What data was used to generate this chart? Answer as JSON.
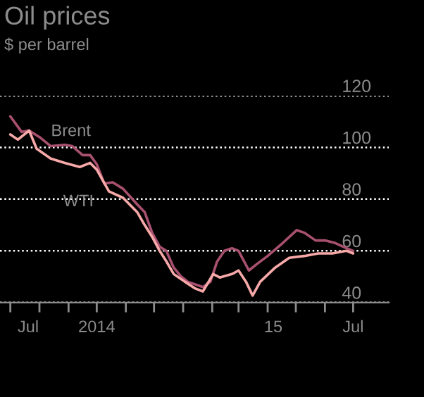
{
  "chart_data": {
    "type": "line",
    "title": "Oil prices",
    "subtitle": "$ per barrel",
    "series": [
      {
        "name": "Brent",
        "color": "#a8506f",
        "x": [
          "2014-07-01",
          "2014-07-13",
          "2014-07-21",
          "2014-08-01",
          "2014-08-13",
          "2014-08-28",
          "2014-09-05",
          "2014-09-16",
          "2014-09-24",
          "2014-10-01",
          "2014-10-09",
          "2014-10-18",
          "2014-10-29",
          "2014-11-13",
          "2014-11-21",
          "2014-11-29",
          "2014-12-07",
          "2014-12-14",
          "2014-12-22",
          "2014-12-30",
          "2015-01-06",
          "2015-01-22",
          "2015-01-30",
          "2015-02-06",
          "2015-02-14",
          "2015-02-22",
          "2015-03-01",
          "2015-03-12",
          "2015-03-21",
          "2015-04-01",
          "2015-04-17",
          "2015-05-02",
          "2015-05-10",
          "2015-05-22",
          "2015-06-01",
          "2015-06-12",
          "2015-06-24",
          "2015-07-01"
        ],
        "values": [
          112,
          106,
          106.5,
          104,
          100.5,
          101,
          100.5,
          97,
          97,
          93.5,
          86,
          86.5,
          84,
          78,
          75,
          67,
          61.6,
          60,
          53.5,
          50,
          48,
          46,
          48,
          55.7,
          60,
          61,
          60,
          52.4,
          55,
          58,
          63,
          68,
          67,
          64,
          64,
          63,
          61,
          60
        ]
      },
      {
        "name": "WTI",
        "color": "#f7a8a8",
        "x": [
          "2014-07-01",
          "2014-07-09",
          "2014-07-21",
          "2014-07-29",
          "2014-08-13",
          "2014-08-28",
          "2014-09-13",
          "2014-09-24",
          "2014-10-01",
          "2014-10-14",
          "2014-10-29",
          "2014-11-13",
          "2014-11-21",
          "2014-11-29",
          "2014-12-07",
          "2014-12-14",
          "2014-12-22",
          "2015-01-03",
          "2015-01-14",
          "2015-01-22",
          "2015-02-02",
          "2015-02-09",
          "2015-02-22",
          "2015-03-01",
          "2015-03-09",
          "2015-03-16",
          "2015-03-24",
          "2015-04-09",
          "2015-04-24",
          "2015-05-10",
          "2015-05-25",
          "2015-06-09",
          "2015-06-24",
          "2015-07-01"
        ],
        "values": [
          105,
          103,
          106.5,
          99.5,
          95.7,
          94,
          92.4,
          94,
          91.4,
          83,
          80.5,
          75,
          70,
          65.4,
          60,
          56,
          51,
          48,
          45.4,
          44.3,
          51,
          49.7,
          51,
          52.4,
          48,
          42.7,
          48,
          53.5,
          57.3,
          58,
          59,
          59,
          60,
          59
        ]
      }
    ],
    "xlim": [
      "2014-06-20",
      "2015-08-08"
    ],
    "xticks": [
      {
        "value": "2014-07-01",
        "label": null
      },
      {
        "value": "2014-07-20",
        "label": "Jul"
      },
      {
        "value": "2014-08-01",
        "label": null
      },
      {
        "value": "2014-09-01",
        "label": null
      },
      {
        "value": "2014-10-01",
        "label": "2014"
      },
      {
        "value": "2014-10-01",
        "label": null
      },
      {
        "value": "2014-11-01",
        "label": null
      },
      {
        "value": "2014-12-01",
        "label": null
      },
      {
        "value": "2015-01-01",
        "label": null
      },
      {
        "value": "2015-02-01",
        "label": null
      },
      {
        "value": "2015-03-01",
        "label": null
      },
      {
        "value": "2015-04-01",
        "label": null
      },
      {
        "value": "2015-04-07",
        "label": "15"
      },
      {
        "value": "2015-05-01",
        "label": null
      },
      {
        "value": "2015-06-01",
        "label": null
      },
      {
        "value": "2015-07-01",
        "label": null
      },
      {
        "value": "2015-07-01",
        "label": "Jul"
      }
    ],
    "ylim": [
      40,
      120
    ],
    "yticks": [
      40,
      60,
      80,
      100,
      120
    ],
    "grid": "y",
    "legend": false
  }
}
